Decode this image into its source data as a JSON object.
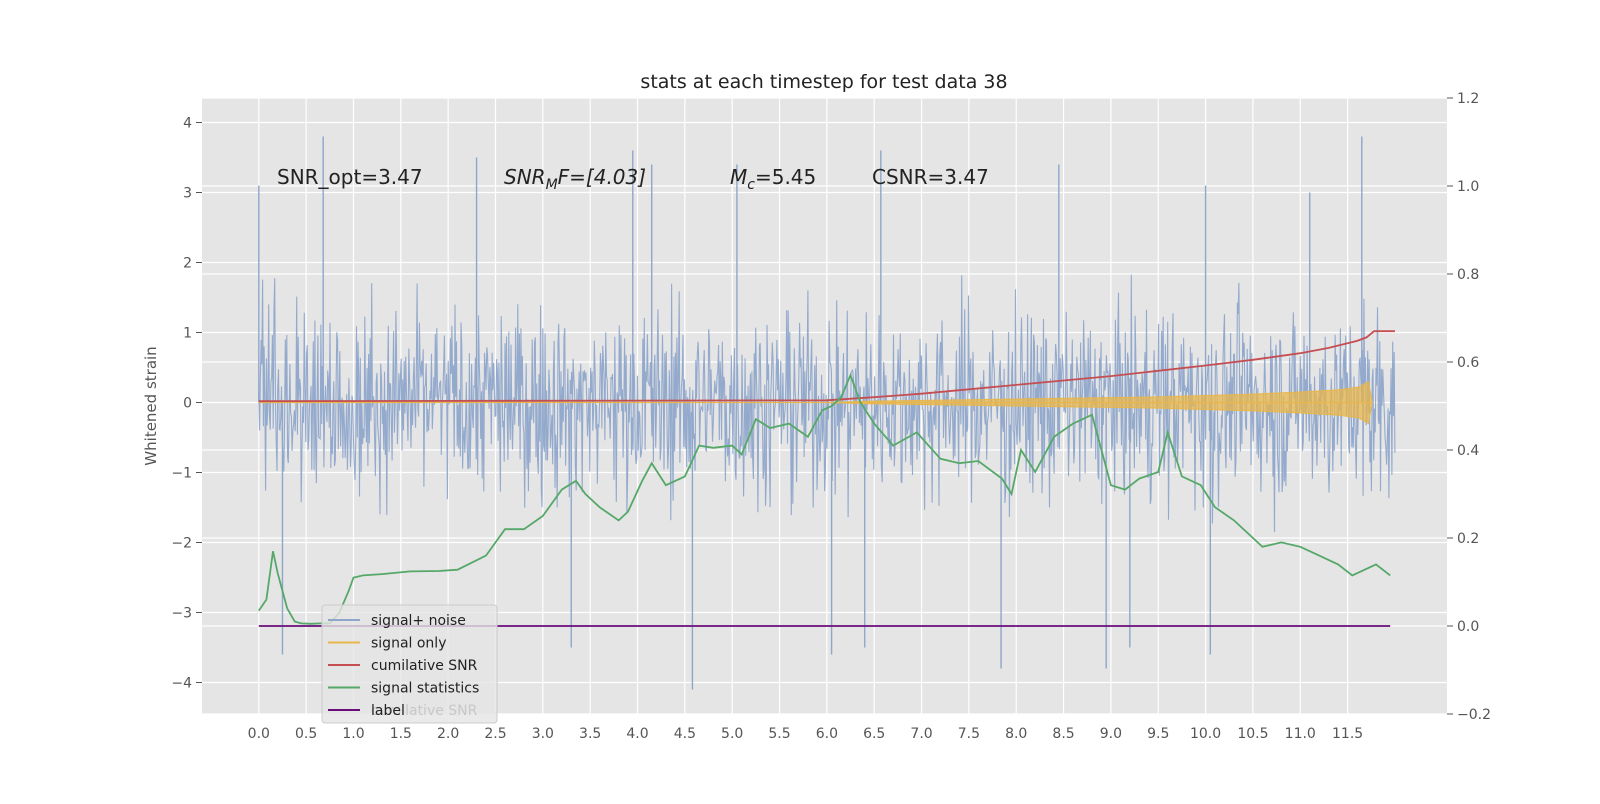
{
  "chart_data": {
    "type": "line",
    "title": "stats at each timestep for test data 38",
    "xlabel": "",
    "ylabel": "Whitened strain",
    "xlim": [
      -0.6,
      12.55
    ],
    "ylim": [
      -4.45,
      4.35
    ],
    "y2lim": [
      -0.2,
      1.2
    ],
    "x_ticks": [
      0.0,
      0.5,
      1.0,
      1.5,
      2.0,
      2.5,
      3.0,
      3.5,
      4.0,
      4.5,
      5.0,
      5.5,
      6.0,
      6.5,
      7.0,
      7.5,
      8.0,
      8.5,
      9.0,
      9.5,
      10.0,
      10.5,
      11.0,
      11.5
    ],
    "x_tick_labels": [
      "0.0",
      "0.5",
      "1.0",
      "1.5",
      "2.0",
      "2.5",
      "3.0",
      "3.5",
      "4.0",
      "4.5",
      "5.0",
      "5.5",
      "6.0",
      "6.5",
      "7.0",
      "7.5",
      "8.0",
      "8.5",
      "9.0",
      "9.5",
      "10.0",
      "10.5",
      "11.0",
      "11.5"
    ],
    "y_ticks": [
      -4,
      -3,
      -2,
      -1,
      0,
      1,
      2,
      3,
      4
    ],
    "y_tick_labels": [
      "−4",
      "−3",
      "−2",
      "−1",
      "0",
      "1",
      "2",
      "3",
      "4"
    ],
    "y2_ticks": [
      -0.2,
      0.0,
      0.2,
      0.4,
      0.6,
      0.8,
      1.0,
      1.2
    ],
    "y2_tick_labels": [
      "−0.2",
      "0.0",
      "0.2",
      "0.4",
      "0.6",
      "0.8",
      "1.0",
      "1.2"
    ],
    "grid": true,
    "legend_position": "lower-left",
    "annotations": {
      "snr_opt": "SNR_opt=3.47",
      "snr_mf_main": "SNR",
      "snr_mf_sub": "M",
      "snr_mf_rest": "F=[4.03]",
      "mc_main": "M",
      "mc_sub": "c",
      "mc_rest": "=5.45",
      "csnr": "CSNR=3.47"
    },
    "series": [
      {
        "name": "signal+ noise",
        "axis": "left",
        "color": "#8fa6cb",
        "x_range": [
          0.0,
          12.0
        ],
        "typical_range": [
          -2.3,
          2.3
        ],
        "spikes": [
          {
            "x": 0.0,
            "y": 3.1
          },
          {
            "x": 0.25,
            "y": -3.6
          },
          {
            "x": 0.68,
            "y": 3.8
          },
          {
            "x": 2.3,
            "y": 3.5
          },
          {
            "x": 3.3,
            "y": -3.5
          },
          {
            "x": 3.95,
            "y": 3.6
          },
          {
            "x": 4.15,
            "y": 3.4
          },
          {
            "x": 4.58,
            "y": -4.1
          },
          {
            "x": 5.05,
            "y": 3.4
          },
          {
            "x": 6.05,
            "y": -3.6
          },
          {
            "x": 6.4,
            "y": -3.5
          },
          {
            "x": 6.57,
            "y": 3.6
          },
          {
            "x": 7.84,
            "y": -3.8
          },
          {
            "x": 8.45,
            "y": 3.4
          },
          {
            "x": 8.95,
            "y": -3.8
          },
          {
            "x": 9.2,
            "y": -3.5
          },
          {
            "x": 10.0,
            "y": 3.1
          },
          {
            "x": 10.05,
            "y": -3.6
          },
          {
            "x": 11.1,
            "y": 3.0
          },
          {
            "x": 11.65,
            "y": 3.8
          }
        ]
      },
      {
        "name": "signal only",
        "axis": "left",
        "color": "#e8b64a",
        "x": [
          0.0,
          6.0,
          6.5,
          7.0,
          7.5,
          8.0,
          8.5,
          9.0,
          9.5,
          10.0,
          10.5,
          11.0,
          11.4,
          11.62,
          11.72,
          11.76
        ],
        "envelope": [
          0.0,
          0.0,
          0.02,
          0.03,
          0.04,
          0.05,
          0.06,
          0.07,
          0.08,
          0.1,
          0.12,
          0.15,
          0.18,
          0.22,
          0.3,
          0.0
        ]
      },
      {
        "name": "cumilative SNR",
        "axis": "right",
        "color": "#c44e52",
        "x": [
          0.0,
          6.0,
          6.5,
          7.0,
          7.5,
          8.0,
          8.5,
          9.0,
          9.5,
          10.0,
          10.5,
          11.0,
          11.3,
          11.6,
          11.7,
          11.78,
          12.0
        ],
        "values": [
          0.511,
          0.513,
          0.52,
          0.528,
          0.538,
          0.548,
          0.558,
          0.568,
          0.58,
          0.592,
          0.605,
          0.62,
          0.632,
          0.648,
          0.656,
          0.67,
          0.67
        ]
      },
      {
        "name": "signal statistics",
        "axis": "right",
        "color": "#55a868",
        "x": [
          0.0,
          0.08,
          0.15,
          0.2,
          0.3,
          0.38,
          0.45,
          0.55,
          0.65,
          0.75,
          0.85,
          0.95,
          1.0,
          1.1,
          1.3,
          1.6,
          1.9,
          2.1,
          2.4,
          2.6,
          2.8,
          3.0,
          3.2,
          3.35,
          3.45,
          3.6,
          3.8,
          3.9,
          4.05,
          4.15,
          4.3,
          4.5,
          4.65,
          4.8,
          5.0,
          5.1,
          5.25,
          5.4,
          5.6,
          5.8,
          5.95,
          6.05,
          6.15,
          6.25,
          6.35,
          6.5,
          6.7,
          6.95,
          7.2,
          7.4,
          7.6,
          7.85,
          7.95,
          8.05,
          8.2,
          8.4,
          8.6,
          8.8,
          9.0,
          9.15,
          9.3,
          9.5,
          9.6,
          9.75,
          9.95,
          10.1,
          10.3,
          10.6,
          10.8,
          11.0,
          11.2,
          11.4,
          11.55,
          11.8,
          11.95
        ],
        "values": [
          0.035,
          0.06,
          0.17,
          0.12,
          0.04,
          0.01,
          0.006,
          0.005,
          0.006,
          0.006,
          0.03,
          0.08,
          0.11,
          0.115,
          0.118,
          0.124,
          0.125,
          0.128,
          0.16,
          0.22,
          0.22,
          0.25,
          0.31,
          0.33,
          0.3,
          0.27,
          0.24,
          0.26,
          0.33,
          0.37,
          0.32,
          0.34,
          0.41,
          0.405,
          0.41,
          0.39,
          0.47,
          0.45,
          0.46,
          0.43,
          0.49,
          0.5,
          0.52,
          0.57,
          0.51,
          0.46,
          0.41,
          0.44,
          0.38,
          0.37,
          0.375,
          0.335,
          0.3,
          0.4,
          0.35,
          0.43,
          0.46,
          0.48,
          0.32,
          0.31,
          0.335,
          0.35,
          0.44,
          0.34,
          0.32,
          0.27,
          0.24,
          0.18,
          0.19,
          0.18,
          0.16,
          0.14,
          0.115,
          0.14,
          0.115
        ]
      },
      {
        "name": "label",
        "axis": "right",
        "color": "#6a0d7a",
        "x": [
          0.0,
          11.95
        ],
        "values": [
          0.0,
          0.0
        ]
      }
    ],
    "legend": [
      {
        "label": "signal+ noise",
        "color": "#8fa6cb"
      },
      {
        "label": "signal only",
        "color": "#e8b64a"
      },
      {
        "label": "cumilative SNR",
        "color": "#c44e52"
      },
      {
        "label": "signal statistics",
        "color": "#55a868"
      },
      {
        "label": "label",
        "color": "#6a0d7a"
      }
    ],
    "legend_ghost_text": "cumilative SNR"
  }
}
